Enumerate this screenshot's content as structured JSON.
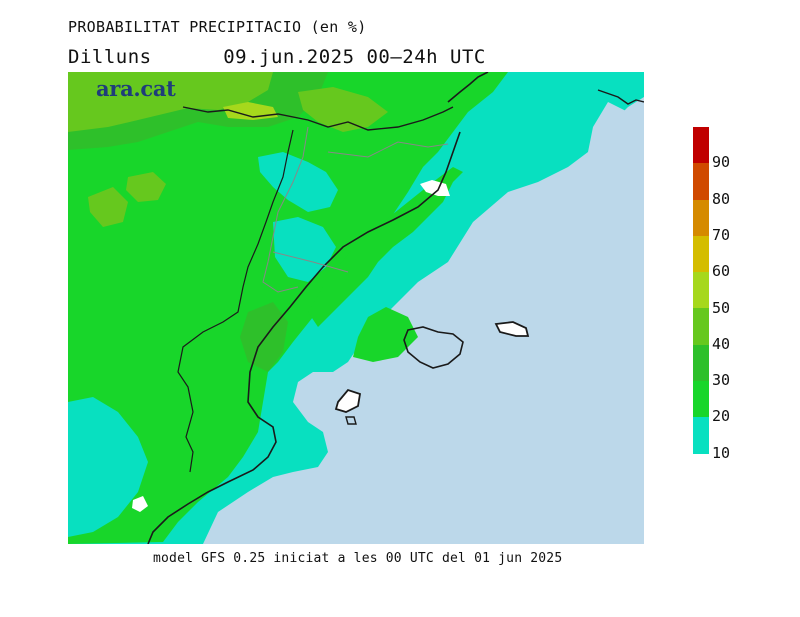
{
  "header": {
    "title": "PROBABILITAT PRECIPITACIO (en %)",
    "subtitle": "Dilluns      09.jun.2025 00—24h UTC"
  },
  "logo": {
    "text": "ara.cat",
    "color": "#1f3d7a"
  },
  "footer": {
    "text": "model GFS 0.25 iniciat a les 00 UTC del 01 jun 2025"
  },
  "legend": {
    "bins": [
      {
        "label": "90",
        "color": "#c00000"
      },
      {
        "label": "80",
        "color": "#d04a00"
      },
      {
        "label": "70",
        "color": "#d58a00"
      },
      {
        "label": "60",
        "color": "#d4bd00"
      },
      {
        "label": "50",
        "color": "#a6d81c"
      },
      {
        "label": "40",
        "color": "#66c81e"
      },
      {
        "label": "30",
        "color": "#2ec02a"
      },
      {
        "label": "20",
        "color": "#18d62a"
      },
      {
        "label": "10",
        "color": "#08e0c0"
      }
    ],
    "below_min_color": "#bcd8ea"
  },
  "map": {
    "colors": {
      "sea_low": "#bcd8ea",
      "p10": "#08e0c0",
      "p20": "#18d62a",
      "p30": "#2ec02a",
      "p40": "#66c81e",
      "p50": "#a6d81c",
      "coast": "#1a1a1a",
      "border": "#888888"
    }
  }
}
